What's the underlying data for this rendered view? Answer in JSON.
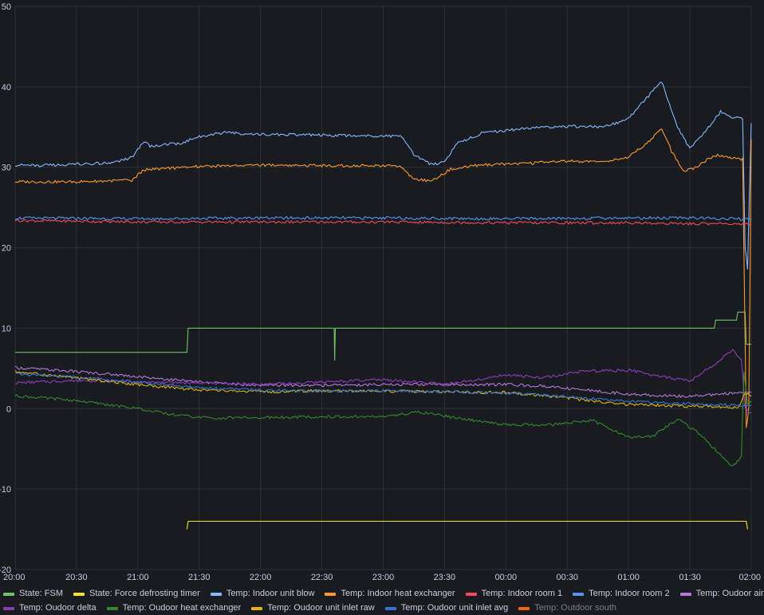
{
  "chart_data": {
    "type": "line",
    "title": "",
    "xlabel": "",
    "ylabel": "",
    "ylim": [
      -20,
      50
    ],
    "xlim_hours": [
      20,
      26
    ],
    "y_ticks": [
      "50",
      "40",
      "30",
      "20",
      "10",
      "0",
      "-10",
      "-20"
    ],
    "x_ticks": [
      "20:00",
      "20:30",
      "21:00",
      "21:30",
      "22:00",
      "22:30",
      "23:00",
      "23:30",
      "00:00",
      "00:30",
      "01:00",
      "01:30",
      "02:00"
    ],
    "grid": true,
    "legend_position": "bottom",
    "series": [
      {
        "name": "State: FSM",
        "color": "#73bf69",
        "visible": true,
        "points": [
          [
            20,
            7
          ],
          [
            21.4,
            7
          ],
          [
            21.41,
            10
          ],
          [
            22.6,
            10
          ],
          [
            22.605,
            6
          ],
          [
            22.61,
            10
          ],
          [
            25.7,
            10
          ],
          [
            25.71,
            11
          ],
          [
            25.88,
            11
          ],
          [
            25.89,
            12
          ],
          [
            25.95,
            12
          ],
          [
            25.96,
            8
          ],
          [
            26,
            8
          ]
        ]
      },
      {
        "name": "State: Force defrosting timer",
        "color": "#fade2a",
        "visible": true,
        "points": [
          [
            21.4,
            -15
          ],
          [
            21.41,
            -14
          ],
          [
            25.96,
            -14
          ],
          [
            25.97,
            -15
          ]
        ]
      },
      {
        "name": "Temp: Indoor unit blow",
        "color": "#8ab8ff",
        "visible": true,
        "points": [
          [
            20,
            30.3
          ],
          [
            20.2,
            30.2
          ],
          [
            20.5,
            30.4
          ],
          [
            20.8,
            30.5
          ],
          [
            20.95,
            31.2
          ],
          [
            21.05,
            33.2
          ],
          [
            21.1,
            32.6
          ],
          [
            21.35,
            33
          ],
          [
            21.5,
            33.8
          ],
          [
            21.7,
            34.3
          ],
          [
            22,
            34.1
          ],
          [
            22.5,
            34
          ],
          [
            23,
            33.9
          ],
          [
            23.15,
            33.8
          ],
          [
            23.25,
            31.5
          ],
          [
            23.4,
            30.3
          ],
          [
            23.5,
            30.7
          ],
          [
            23.6,
            33
          ],
          [
            23.8,
            34.2
          ],
          [
            24,
            34.6
          ],
          [
            24.3,
            35
          ],
          [
            24.6,
            35.1
          ],
          [
            24.8,
            35
          ],
          [
            25,
            36
          ],
          [
            25.1,
            37.8
          ],
          [
            25.2,
            39.5
          ],
          [
            25.27,
            40.7
          ],
          [
            25.32,
            38.5
          ],
          [
            25.4,
            35
          ],
          [
            25.5,
            32.3
          ],
          [
            25.6,
            34
          ],
          [
            25.75,
            36.9
          ],
          [
            25.85,
            36.2
          ],
          [
            25.93,
            36
          ],
          [
            25.95,
            20
          ],
          [
            25.97,
            17.5
          ],
          [
            26,
            35.5
          ]
        ]
      },
      {
        "name": "Temp: Indoor heat exchanger",
        "color": "#ff9830",
        "visible": true,
        "points": [
          [
            20,
            28.2
          ],
          [
            20.5,
            28.2
          ],
          [
            20.95,
            28.4
          ],
          [
            21.05,
            29.7
          ],
          [
            21.3,
            29.9
          ],
          [
            21.5,
            30.1
          ],
          [
            22,
            30.3
          ],
          [
            22.5,
            30.2
          ],
          [
            23,
            30.2
          ],
          [
            23.15,
            30
          ],
          [
            23.25,
            28.5
          ],
          [
            23.4,
            28.3
          ],
          [
            23.55,
            29.8
          ],
          [
            23.8,
            30.3
          ],
          [
            24.2,
            30.5
          ],
          [
            24.5,
            30.8
          ],
          [
            24.8,
            30.6
          ],
          [
            25,
            31.3
          ],
          [
            25.15,
            33
          ],
          [
            25.27,
            34.8
          ],
          [
            25.35,
            32
          ],
          [
            25.45,
            29.5
          ],
          [
            25.55,
            30
          ],
          [
            25.7,
            31.5
          ],
          [
            25.85,
            31.2
          ],
          [
            25.93,
            31
          ],
          [
            25.96,
            -2.5
          ],
          [
            25.98,
            0
          ],
          [
            26,
            33.5
          ]
        ]
      },
      {
        "name": "Temp: Indoor room 1",
        "color": "#f2495c",
        "visible": true,
        "points": [
          [
            20,
            23.4
          ],
          [
            21,
            23.2
          ],
          [
            22,
            23.2
          ],
          [
            23,
            23.2
          ],
          [
            24,
            23.1
          ],
          [
            25,
            23.1
          ],
          [
            25.5,
            23
          ],
          [
            25.9,
            23
          ],
          [
            26,
            22.9
          ]
        ]
      },
      {
        "name": "Temp: Indoor room 2",
        "color": "#5794f2",
        "visible": true,
        "points": [
          [
            20,
            23.7
          ],
          [
            21,
            23.6
          ],
          [
            22,
            23.7
          ],
          [
            23,
            23.7
          ],
          [
            24,
            23.6
          ],
          [
            25,
            23.7
          ],
          [
            25.5,
            23.7
          ],
          [
            25.9,
            23.6
          ],
          [
            26,
            23.4
          ]
        ]
      },
      {
        "name": "Temp: Oudoor air",
        "color": "#b877d9",
        "visible": true,
        "points": [
          [
            20,
            5.1
          ],
          [
            20.5,
            4.6
          ],
          [
            21,
            4
          ],
          [
            21.5,
            3.3
          ],
          [
            22,
            2.9
          ],
          [
            22.5,
            2.9
          ],
          [
            23,
            3
          ],
          [
            23.5,
            3
          ],
          [
            24,
            3
          ],
          [
            24.3,
            2.8
          ],
          [
            24.6,
            2.4
          ],
          [
            25,
            1.8
          ],
          [
            25.5,
            1.5
          ],
          [
            25.9,
            2
          ],
          [
            26,
            2
          ]
        ]
      },
      {
        "name": "Temp: Oudoor delta",
        "color": "#8f3bb8",
        "visible": true,
        "points": [
          [
            20,
            3.2
          ],
          [
            20.5,
            3.5
          ],
          [
            21,
            3.3
          ],
          [
            21.5,
            3.2
          ],
          [
            22,
            3
          ],
          [
            22.5,
            3.3
          ],
          [
            23,
            3.6
          ],
          [
            23.5,
            3
          ],
          [
            24,
            4.2
          ],
          [
            24.3,
            3.8
          ],
          [
            24.6,
            4.6
          ],
          [
            25,
            4.8
          ],
          [
            25.3,
            3.9
          ],
          [
            25.5,
            3.4
          ],
          [
            25.7,
            5.5
          ],
          [
            25.85,
            7.4
          ],
          [
            25.92,
            6
          ],
          [
            25.95,
            0
          ],
          [
            26,
            -0.5
          ]
        ]
      },
      {
        "name": "Temp: Oudoor heat exchanger",
        "color": "#37872d",
        "visible": true,
        "points": [
          [
            20,
            1.6
          ],
          [
            20.5,
            1
          ],
          [
            21,
            0
          ],
          [
            21.3,
            -0.8
          ],
          [
            21.6,
            -1.2
          ],
          [
            22,
            -1.1
          ],
          [
            22.5,
            -1
          ],
          [
            23,
            -1
          ],
          [
            23.3,
            -0.4
          ],
          [
            23.6,
            -1.2
          ],
          [
            24,
            -2
          ],
          [
            24.4,
            -2
          ],
          [
            24.7,
            -1.4
          ],
          [
            25,
            -3.6
          ],
          [
            25.2,
            -3.4
          ],
          [
            25.4,
            -1.3
          ],
          [
            25.55,
            -2.8
          ],
          [
            25.7,
            -5
          ],
          [
            25.85,
            -7.2
          ],
          [
            25.92,
            -6
          ],
          [
            25.94,
            4.7
          ],
          [
            25.97,
            0.5
          ],
          [
            26,
            1
          ]
        ]
      },
      {
        "name": "Temp: Oudoor unit inlet raw",
        "color": "#e0b400",
        "visible": true,
        "points": [
          [
            20,
            4.6
          ],
          [
            20.5,
            3.8
          ],
          [
            21,
            3
          ],
          [
            21.5,
            2.3
          ],
          [
            22,
            2.1
          ],
          [
            22.5,
            2.2
          ],
          [
            23,
            2.2
          ],
          [
            23.5,
            2.1
          ],
          [
            24,
            2
          ],
          [
            24.4,
            1.5
          ],
          [
            24.8,
            0.8
          ],
          [
            25,
            0.5
          ],
          [
            25.5,
            0.3
          ],
          [
            25.9,
            0.2
          ],
          [
            25.95,
            2
          ],
          [
            26,
            1.5
          ]
        ]
      },
      {
        "name": "Temp: Oudoor unit inlet avg",
        "color": "#3274d9",
        "visible": true,
        "points": [
          [
            20,
            4.3
          ],
          [
            20.5,
            3.9
          ],
          [
            21,
            3.3
          ],
          [
            21.5,
            2.6
          ],
          [
            22,
            2.3
          ],
          [
            22.5,
            2.2
          ],
          [
            23,
            2.2
          ],
          [
            23.5,
            2.1
          ],
          [
            24,
            1.9
          ],
          [
            24.4,
            1.6
          ],
          [
            24.8,
            1.1
          ],
          [
            25,
            0.9
          ],
          [
            25.5,
            0.6
          ],
          [
            25.9,
            0.4
          ],
          [
            26,
            0.4
          ]
        ]
      },
      {
        "name": "Temp: Outdoor south",
        "color": "#fa6400",
        "visible": false,
        "points": []
      }
    ]
  }
}
